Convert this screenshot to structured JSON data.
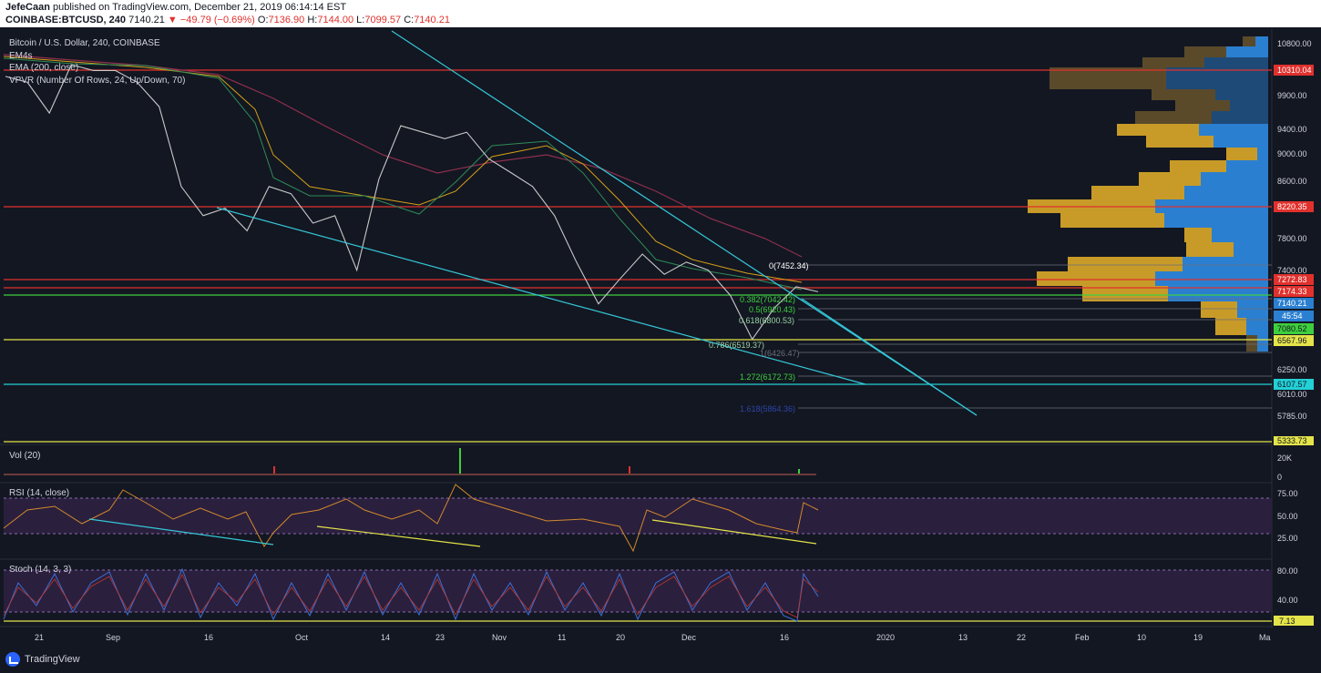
{
  "header": {
    "publisher": "JefeCaan",
    "published_text": "published on TradingView.com, December 21, 2019 06:14:14 EST",
    "symbol": "COINBASE:BTCUSD, 240",
    "last": "7140.21",
    "change": "−49.79 (−0.69%)",
    "ohlc": {
      "o_label": "O:",
      "o": "7136.90",
      "h_label": "H:",
      "h": "7144.00",
      "l_label": "L:",
      "l": "7099.57",
      "c_label": "C:",
      "c": "7140.21"
    }
  },
  "legend": {
    "title": "Bitcoin / U.S. Dollar, 240, COINBASE",
    "ema4s": "EM4s",
    "ema200": "EMA (200, close)",
    "vpvr": "VPVR (Number Of Rows, 24, Up/Down, 70)"
  },
  "panes": {
    "vol_label": "Vol (20)",
    "rsi_label": "RSI (14, close)",
    "stoch_label": "Stoch (14, 3, 3)"
  },
  "price_axis": {
    "ticks": [
      "10800.00",
      "9900.00",
      "9400.00",
      "9000.00",
      "8600.00",
      "7800.00",
      "7400.00",
      "6250.00",
      "6010.00",
      "5785.00"
    ],
    "vol_ticks": [
      "20K",
      "0"
    ],
    "rsi_ticks": [
      "75.00",
      "50.00",
      "25.00"
    ],
    "stoch_ticks": [
      "80.00",
      "40.00"
    ]
  },
  "price_badges": {
    "r10310": "10310.04",
    "r8220": "8220.35",
    "r7272": "7272.83",
    "r7174": "7174.33",
    "last": "7140.21",
    "countdown": "45:54",
    "green": "7080.52",
    "yellow6567": "6567.96",
    "cyan6107": "6107.57",
    "yellow5333": "5333.73",
    "stoch_last": "7.13"
  },
  "fib_labels": {
    "f0": "0(7452.34)",
    "f382": "0.382(7042.42)",
    "f5": "0.5(6920.43)",
    "f618": "0.618(6800.53)",
    "f786": "0.786(6519.37)",
    "f1": "1(6426.47)",
    "f1272": "1.272(6172.73)",
    "f1618": "1.618(5864.36)"
  },
  "time_axis": [
    "21",
    "Sep",
    "16",
    "Oct",
    "14",
    "23",
    "Nov",
    "11",
    "20",
    "Dec",
    "16",
    "2020",
    "13",
    "22",
    "Feb",
    "10",
    "19",
    "Ma"
  ],
  "footer": {
    "brand": "TradingView"
  },
  "colors": {
    "background": "#131722",
    "red_level": "#e0312d",
    "green_level": "#3ecf3e",
    "yellow_level": "#e4e44a",
    "cyan_level": "#22d0d6",
    "trendline": "#35c7d8",
    "vp_up": "#2b7fd0",
    "vp_down": "#c89b28"
  },
  "chart_data": {
    "type": "line",
    "title": "Bitcoin / U.S. Dollar, 240, COINBASE",
    "x_range": [
      "Aug 2019",
      "Mar 2020"
    ],
    "ylim": [
      5600,
      10900
    ],
    "log_scale": true,
    "series": [
      {
        "name": "BTCUSD",
        "x": [
          "Aug 21",
          "Aug 26",
          "Aug 31",
          "Sep 5",
          "Sep 10",
          "Sep 15",
          "Sep 20",
          "Sep 24",
          "Sep 26",
          "Sep 28",
          "Oct 2",
          "Oct 6",
          "Oct 10",
          "Oct 14",
          "Oct 18",
          "Oct 22",
          "Oct 23",
          "Oct 25",
          "Oct 26",
          "Oct 28",
          "Nov 1",
          "Nov 5",
          "Nov 9",
          "Nov 13",
          "Nov 17",
          "Nov 20",
          "Nov 22",
          "Nov 24",
          "Nov 26",
          "Nov 29",
          "Dec 2",
          "Dec 6",
          "Dec 10",
          "Dec 14",
          "Dec 17",
          "Dec 18",
          "Dec 19",
          "Dec 21"
        ],
        "values": [
          10200,
          10100,
          9600,
          10400,
          10300,
          10300,
          10100,
          9700,
          8500,
          8100,
          8200,
          7900,
          8500,
          8400,
          8000,
          8100,
          7400,
          8600,
          9400,
          9300,
          9200,
          9300,
          8900,
          8700,
          8500,
          8100,
          7500,
          7000,
          7300,
          7600,
          7350,
          7500,
          7400,
          7100,
          6600,
          6950,
          7200,
          7140
        ]
      }
    ],
    "levels": [
      {
        "name": "red",
        "value": 10310.04
      },
      {
        "name": "red",
        "value": 8220.35
      },
      {
        "name": "red",
        "value": 7272.83
      },
      {
        "name": "red",
        "value": 7174.33
      },
      {
        "name": "green",
        "value": 7080.52
      },
      {
        "name": "yellow",
        "value": 6567.96
      },
      {
        "name": "cyan",
        "value": 6107.57
      },
      {
        "name": "yellow",
        "value": 5333.73
      }
    ],
    "fibonacci": [
      {
        "ratio": "0",
        "value": 7452.34
      },
      {
        "ratio": "0.382",
        "value": 7042.42
      },
      {
        "ratio": "0.5",
        "value": 6920.43
      },
      {
        "ratio": "0.618",
        "value": 6800.53
      },
      {
        "ratio": "0.786",
        "value": 6519.37
      },
      {
        "ratio": "1",
        "value": 6426.47
      },
      {
        "ratio": "1.272",
        "value": 6172.73
      },
      {
        "ratio": "1.618",
        "value": 5864.36
      }
    ],
    "grid": false
  }
}
